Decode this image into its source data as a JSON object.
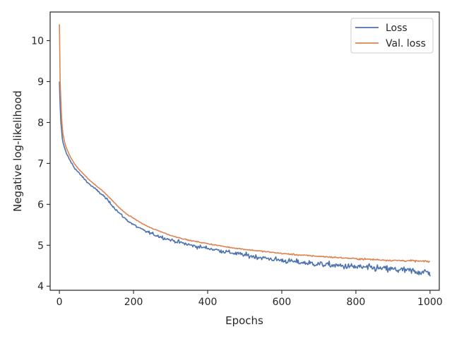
{
  "chart_data": {
    "type": "line",
    "xlabel": "Epochs",
    "ylabel": "Negative log-likelihood",
    "xlim": [
      -25,
      1025
    ],
    "ylim": [
      3.9,
      10.7
    ],
    "xticks": [
      0,
      200,
      400,
      600,
      800,
      1000
    ],
    "yticks": [
      4,
      5,
      6,
      7,
      8,
      9,
      10
    ],
    "grid": false,
    "legend_position": "top-right",
    "series": [
      {
        "name": "Loss",
        "color": "#4c72b0",
        "x": [
          0,
          2,
          4,
          6,
          8,
          10,
          15,
          20,
          30,
          40,
          50,
          60,
          80,
          100,
          120,
          140,
          160,
          180,
          200,
          225,
          250,
          275,
          300,
          325,
          350,
          375,
          400,
          450,
          500,
          550,
          600,
          650,
          700,
          750,
          800,
          850,
          900,
          950,
          1000
        ],
        "values": [
          9.0,
          8.4,
          8.0,
          7.8,
          7.6,
          7.5,
          7.35,
          7.22,
          7.05,
          6.9,
          6.79,
          6.69,
          6.5,
          6.35,
          6.2,
          6.0,
          5.8,
          5.63,
          5.5,
          5.37,
          5.28,
          5.2,
          5.13,
          5.07,
          5.01,
          4.96,
          4.93,
          4.84,
          4.76,
          4.69,
          4.63,
          4.58,
          4.54,
          4.5,
          4.47,
          4.44,
          4.41,
          4.37,
          4.33
        ],
        "noise": 0.05
      },
      {
        "name": "Val. loss",
        "color": "#dd8452",
        "x": [
          0,
          2,
          4,
          6,
          8,
          10,
          15,
          20,
          30,
          40,
          50,
          60,
          80,
          100,
          120,
          140,
          160,
          180,
          200,
          225,
          250,
          275,
          300,
          325,
          350,
          375,
          400,
          450,
          500,
          550,
          600,
          650,
          700,
          750,
          800,
          850,
          900,
          950,
          1000
        ],
        "values": [
          10.4,
          9.0,
          8.5,
          8.1,
          7.85,
          7.7,
          7.48,
          7.35,
          7.15,
          7.0,
          6.88,
          6.79,
          6.6,
          6.45,
          6.3,
          6.12,
          5.93,
          5.77,
          5.66,
          5.52,
          5.41,
          5.33,
          5.24,
          5.18,
          5.12,
          5.08,
          5.04,
          4.96,
          4.9,
          4.85,
          4.8,
          4.76,
          4.73,
          4.7,
          4.67,
          4.65,
          4.63,
          4.62,
          4.6
        ],
        "noise": 0.012
      }
    ]
  }
}
